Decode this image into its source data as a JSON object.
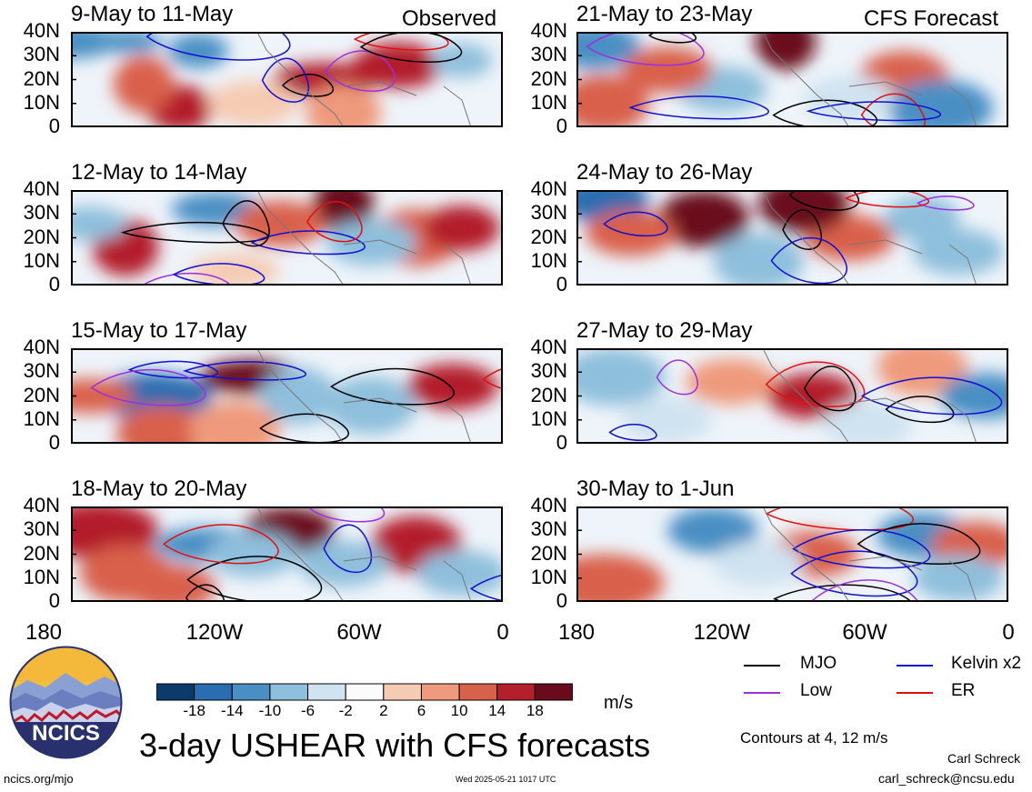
{
  "chart_data": {
    "type": "heatmap",
    "title": "3-day USHEAR with CFS forecasts",
    "variable": "USHEAR",
    "units": "m/s",
    "y_ticks": [
      "40N",
      "30N",
      "20N",
      "10N",
      "0"
    ],
    "x_ticks": [
      "180",
      "120W",
      "60W",
      "0"
    ],
    "lat_range": [
      0,
      40
    ],
    "lon_range": [
      -180,
      0
    ],
    "colorbar": {
      "labels": [
        "-18",
        "-14",
        "-10",
        "-6",
        "-2",
        "2",
        "6",
        "10",
        "14",
        "18"
      ],
      "levels": [
        -18,
        -14,
        -10,
        -6,
        -2,
        2,
        6,
        10,
        14,
        18
      ],
      "colors": [
        "#0c3a6b",
        "#2a6db0",
        "#4a8fc4",
        "#8ebfdc",
        "#cfe3f0",
        "#fbfbfb",
        "#f6cbb3",
        "#ef9a7c",
        "#d9614c",
        "#b31f2b",
        "#6a0a1c"
      ]
    },
    "columns": [
      {
        "label": "Observed",
        "panels": [
          "9-May to 11-May",
          "12-May to 14-May",
          "15-May to 17-May",
          "18-May to 20-May"
        ]
      },
      {
        "label": "CFS Forecast",
        "panels": [
          "21-May to 23-May",
          "24-May to 26-May",
          "27-May to 29-May",
          "30-May to 1-Jun"
        ]
      }
    ],
    "contour_legend": [
      {
        "name": "MJO",
        "color": "#000000"
      },
      {
        "name": "Kelvin x2",
        "color": "#1010d0"
      },
      {
        "name": "Low",
        "color": "#9a30e0"
      },
      {
        "name": "ER",
        "color": "#e01010"
      }
    ],
    "contour_note": "Contours at 4, 12 m/s"
  },
  "footer": {
    "logo_text": "NCICS",
    "url": "ncics.org/mjo",
    "timestamp": "Wed 2025-05-21 1017 UTC",
    "author": "Carl Schreck",
    "email": "carl_schreck@ncsu.edu"
  }
}
